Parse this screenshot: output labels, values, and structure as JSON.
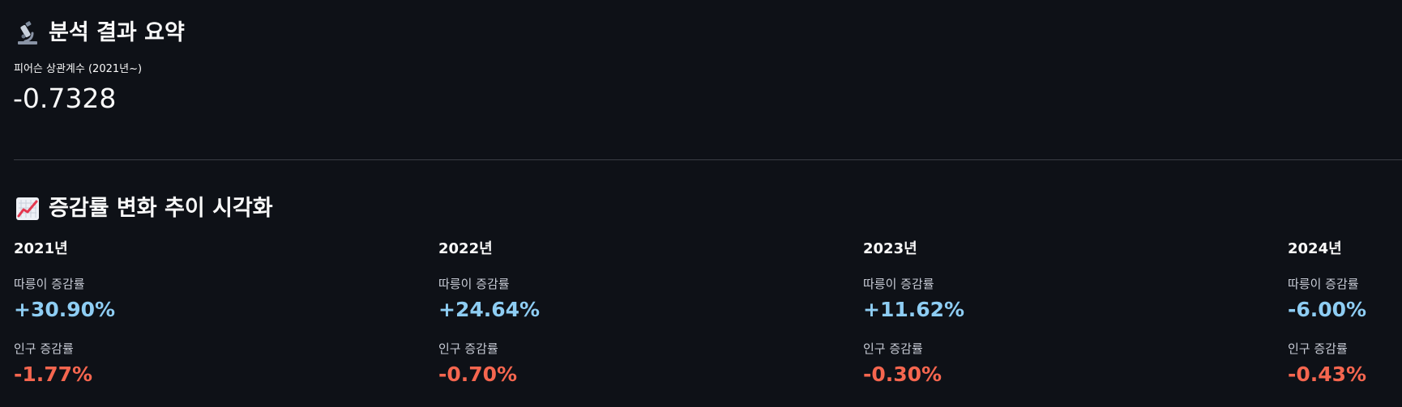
{
  "summary": {
    "title": "분석 결과 요약",
    "emoji": "microscope-icon",
    "metric_label": "피어슨 상관계수 (2021년~)",
    "metric_value": "-0.7328"
  },
  "trend": {
    "title": "증감률 변화 추이 시각화",
    "emoji": "chart-increasing-icon",
    "bike_label": "따릉이 증감률",
    "pop_label": "인구 증감률",
    "years": [
      {
        "year": "2021년",
        "bike": "+30.90%",
        "pop": "-1.77%"
      },
      {
        "year": "2022년",
        "bike": "+24.64%",
        "pop": "-0.70%"
      },
      {
        "year": "2023년",
        "bike": "+11.62%",
        "pop": "-0.30%"
      },
      {
        "year": "2024년",
        "bike": "-6.00%",
        "pop": "-0.43%"
      }
    ]
  },
  "colors": {
    "background": "#0e1117",
    "bike_value": "#8ecdf3",
    "pop_value": "#f5664f",
    "divider": "#3a3d45"
  }
}
